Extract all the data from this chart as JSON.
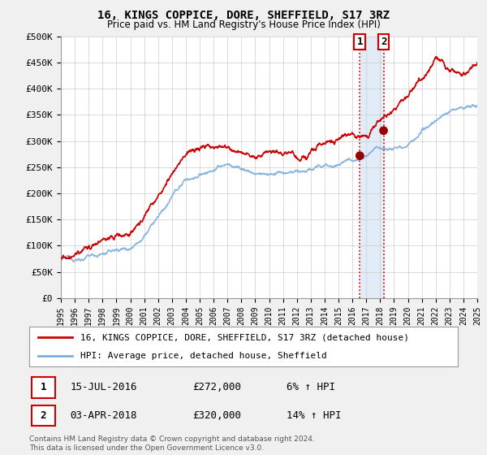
{
  "title": "16, KINGS COPPICE, DORE, SHEFFIELD, S17 3RZ",
  "subtitle": "Price paid vs. HM Land Registry's House Price Index (HPI)",
  "ylim": [
    0,
    500000
  ],
  "xlim": [
    1995,
    2025
  ],
  "yticks": [
    0,
    50000,
    100000,
    150000,
    200000,
    250000,
    300000,
    350000,
    400000,
    450000,
    500000
  ],
  "ytick_labels": [
    "£0",
    "£50K",
    "£100K",
    "£150K",
    "£200K",
    "£250K",
    "£300K",
    "£350K",
    "£400K",
    "£450K",
    "£500K"
  ],
  "xticks": [
    1995,
    1996,
    1997,
    1998,
    1999,
    2000,
    2001,
    2002,
    2003,
    2004,
    2005,
    2006,
    2007,
    2008,
    2009,
    2010,
    2011,
    2012,
    2013,
    2014,
    2015,
    2016,
    2017,
    2018,
    2019,
    2020,
    2021,
    2022,
    2023,
    2024,
    2025
  ],
  "sale1_date": 2016.54,
  "sale1_price": 272000,
  "sale1_label": "1",
  "sale1_info": "15-JUL-2016",
  "sale1_amount": "£272,000",
  "sale1_hpi": "6% ↑ HPI",
  "sale2_date": 2018.25,
  "sale2_price": 320000,
  "sale2_label": "2",
  "sale2_info": "03-APR-2018",
  "sale2_amount": "£320,000",
  "sale2_hpi": "14% ↑ HPI",
  "hpi_color": "#7aade0",
  "price_color": "#cc0000",
  "sale_dot_color": "#990000",
  "vline_color": "#cc0000",
  "shade_color": "#dce9f5",
  "legend_label_price": "16, KINGS COPPICE, DORE, SHEFFIELD, S17 3RZ (detached house)",
  "legend_label_hpi": "HPI: Average price, detached house, Sheffield",
  "footnote": "Contains HM Land Registry data © Crown copyright and database right 2024.\nThis data is licensed under the Open Government Licence v3.0.",
  "background_color": "#f0f0f0",
  "plot_background_color": "#ffffff"
}
